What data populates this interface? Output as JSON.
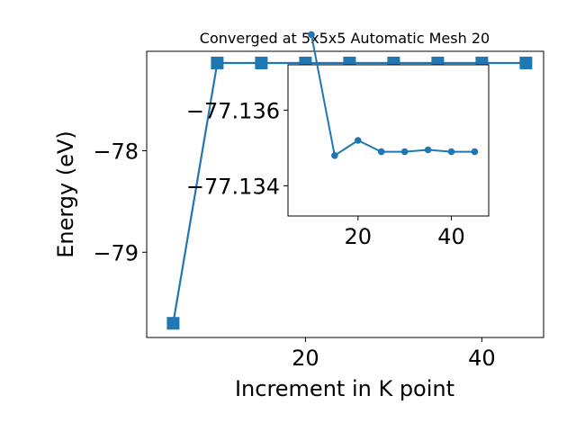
{
  "chart_data": [
    {
      "type": "line",
      "title": "Converged at 5x5x5 Automatic Mesh 20",
      "xlabel": "Increment in K point",
      "ylabel": "Energy (eV)",
      "x": [
        5,
        10,
        15,
        20,
        25,
        30,
        35,
        40,
        45
      ],
      "series": [
        {
          "values": [
            -79.7,
            -77.135,
            -77.135,
            -77.135,
            -77.135,
            -77.135,
            -77.135,
            -77.135,
            -77.135
          ]
        }
      ],
      "xlim": [
        2.0,
        47.0
      ],
      "ylim": [
        -79.84,
        -77.02
      ],
      "xticks": [
        20,
        40
      ],
      "xtick_labels": [
        "20",
        "40"
      ],
      "yticks": [
        -78,
        -79
      ],
      "ytick_labels": [
        "−78",
        "−79"
      ],
      "marker": "square",
      "color": "#1f77b4"
    },
    {
      "type": "line",
      "inset": true,
      "x": [
        10,
        15,
        20,
        25,
        30,
        35,
        40,
        45
      ],
      "series": [
        {
          "values": [
            -77.138,
            -77.1348,
            -77.1352,
            -77.1349,
            -77.1349,
            -77.13495,
            -77.1349,
            -77.1349
          ]
        }
      ],
      "xlim": [
        5.0,
        48.0
      ],
      "ylim": [
        -77.1332,
        -77.1372
      ],
      "xticks": [
        20,
        40
      ],
      "xtick_labels": [
        "20",
        "40"
      ],
      "yticks": [
        -77.136,
        -77.134
      ],
      "ytick_labels": [
        "−77.136",
        "−77.134"
      ],
      "marker": "circle",
      "color": "#1f77b4"
    }
  ]
}
